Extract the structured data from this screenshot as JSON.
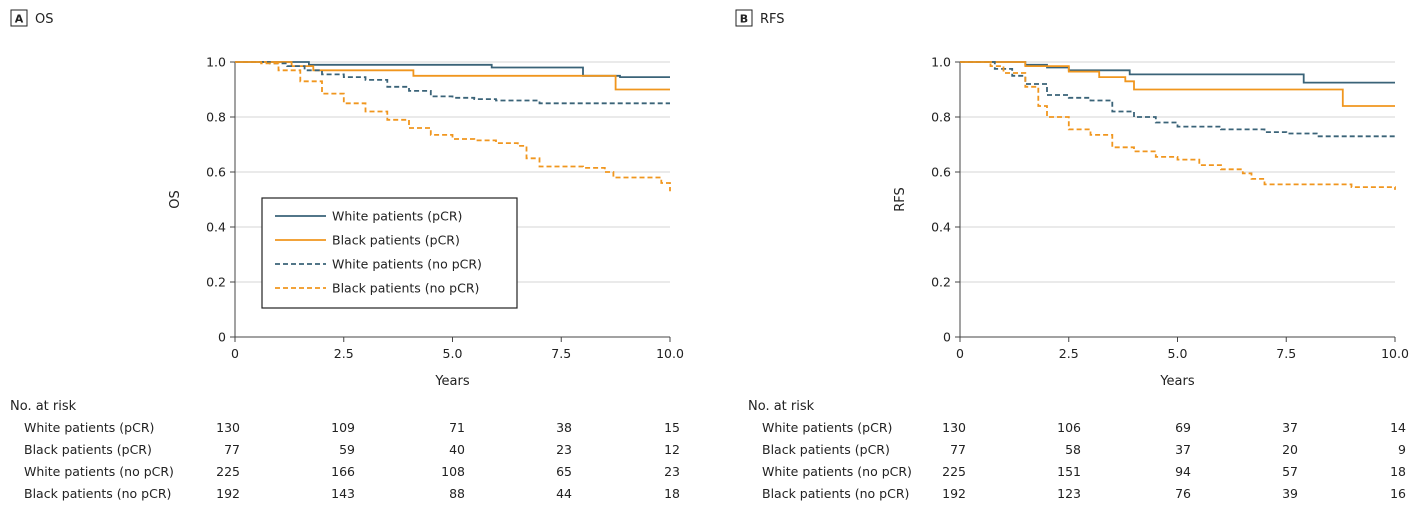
{
  "colors": {
    "white_series": "#3a6378",
    "black_series": "#f0961e",
    "grid": "#d6d6d6",
    "axis": "#444444",
    "text": "#222222"
  },
  "legend": {
    "items": [
      {
        "label": "White patients (pCR)",
        "color": "#3a6378",
        "dash": false
      },
      {
        "label": "Black patients (pCR)",
        "color": "#f0961e",
        "dash": false
      },
      {
        "label": "White patients (no pCR)",
        "color": "#3a6378",
        "dash": true
      },
      {
        "label": "Black patients (no pCR)",
        "color": "#f0961e",
        "dash": true
      }
    ],
    "placement": "lower-left, panel A"
  },
  "chart_data": [
    {
      "type": "line",
      "panel_letter": "A",
      "title": "OS",
      "xlabel": "Years",
      "ylabel": "OS",
      "xlim": [
        0,
        10
      ],
      "ylim": [
        0,
        1
      ],
      "x_ticks": [
        0,
        2.5,
        5,
        7.5,
        10
      ],
      "x_tick_labels": [
        "0",
        "2.5",
        "5.0",
        "7.5",
        "10.0"
      ],
      "y_ticks": [
        0,
        0.2,
        0.4,
        0.6,
        0.8,
        1.0
      ],
      "y_tick_labels": [
        "0",
        "0.2",
        "0.4",
        "0.6",
        "0.8",
        "1.0"
      ],
      "grid": "horizontal",
      "series": [
        {
          "name": "White patients (pCR)",
          "color": "#3a6378",
          "dash": false,
          "points": [
            [
              0,
              1.0
            ],
            [
              1.6,
              1.0
            ],
            [
              1.7,
              0.99
            ],
            [
              5.8,
              0.99
            ],
            [
              5.9,
              0.98
            ],
            [
              7.9,
              0.98
            ],
            [
              8.0,
              0.95
            ],
            [
              8.8,
              0.95
            ],
            [
              8.85,
              0.945
            ],
            [
              10,
              0.945
            ]
          ]
        },
        {
          "name": "Black patients (pCR)",
          "color": "#f0961e",
          "dash": false,
          "points": [
            [
              0,
              1.0
            ],
            [
              1.2,
              1.0
            ],
            [
              1.3,
              0.985
            ],
            [
              1.7,
              0.985
            ],
            [
              1.8,
              0.97
            ],
            [
              4.0,
              0.97
            ],
            [
              4.1,
              0.95
            ],
            [
              8.7,
              0.95
            ],
            [
              8.75,
              0.9
            ],
            [
              10,
              0.9
            ]
          ]
        },
        {
          "name": "White patients (no pCR)",
          "color": "#3a6378",
          "dash": true,
          "points": [
            [
              0,
              1.0
            ],
            [
              0.8,
              0.995
            ],
            [
              1.2,
              0.985
            ],
            [
              1.6,
              0.97
            ],
            [
              2.0,
              0.955
            ],
            [
              2.5,
              0.945
            ],
            [
              3.0,
              0.935
            ],
            [
              3.5,
              0.91
            ],
            [
              4.0,
              0.895
            ],
            [
              4.5,
              0.875
            ],
            [
              5.0,
              0.87
            ],
            [
              5.5,
              0.865
            ],
            [
              6.0,
              0.86
            ],
            [
              6.5,
              0.86
            ],
            [
              7.0,
              0.85
            ],
            [
              10,
              0.85
            ]
          ]
        },
        {
          "name": "Black patients (no pCR)",
          "color": "#f0961e",
          "dash": true,
          "points": [
            [
              0,
              1.0
            ],
            [
              0.6,
              0.995
            ],
            [
              1.0,
              0.97
            ],
            [
              1.5,
              0.93
            ],
            [
              2.0,
              0.885
            ],
            [
              2.5,
              0.85
            ],
            [
              3.0,
              0.82
            ],
            [
              3.5,
              0.79
            ],
            [
              4.0,
              0.76
            ],
            [
              4.5,
              0.735
            ],
            [
              5.0,
              0.72
            ],
            [
              5.5,
              0.715
            ],
            [
              6.0,
              0.705
            ],
            [
              6.5,
              0.695
            ],
            [
              6.7,
              0.65
            ],
            [
              7.0,
              0.62
            ],
            [
              8.0,
              0.615
            ],
            [
              8.5,
              0.6
            ],
            [
              8.7,
              0.58
            ],
            [
              9.5,
              0.58
            ],
            [
              9.8,
              0.56
            ],
            [
              10,
              0.53
            ]
          ]
        }
      ],
      "risk_table": {
        "header": "No. at risk",
        "rows": [
          {
            "label": "White patients (pCR)",
            "values": [
              "130",
              "109",
              "71",
              "38",
              "15"
            ]
          },
          {
            "label": "Black patients (pCR)",
            "values": [
              "77",
              "59",
              "40",
              "23",
              "12"
            ]
          },
          {
            "label": "White patients (no pCR)",
            "values": [
              "225",
              "166",
              "108",
              "65",
              "23"
            ]
          },
          {
            "label": "Black patients (no pCR)",
            "values": [
              "192",
              "143",
              "88",
              "44",
              "18"
            ]
          }
        ]
      }
    },
    {
      "type": "line",
      "panel_letter": "B",
      "title": "RFS",
      "xlabel": "Years",
      "ylabel": "RFS",
      "xlim": [
        0,
        10
      ],
      "ylim": [
        0,
        1
      ],
      "x_ticks": [
        0,
        2.5,
        5,
        7.5,
        10
      ],
      "x_tick_labels": [
        "0",
        "2.5",
        "5.0",
        "7.5",
        "10.0"
      ],
      "y_ticks": [
        0,
        0.2,
        0.4,
        0.6,
        0.8,
        1.0
      ],
      "y_tick_labels": [
        "0",
        "0.2",
        "0.4",
        "0.6",
        "0.8",
        "1.0"
      ],
      "grid": "horizontal",
      "series": [
        {
          "name": "White patients (pCR)",
          "color": "#3a6378",
          "dash": false,
          "points": [
            [
              0,
              1.0
            ],
            [
              1.4,
              1.0
            ],
            [
              1.5,
              0.99
            ],
            [
              1.9,
              0.99
            ],
            [
              2.0,
              0.98
            ],
            [
              2.5,
              0.97
            ],
            [
              3.8,
              0.97
            ],
            [
              3.9,
              0.955
            ],
            [
              7.8,
              0.955
            ],
            [
              7.9,
              0.925
            ],
            [
              10,
              0.925
            ]
          ]
        },
        {
          "name": "Black patients (pCR)",
          "color": "#f0961e",
          "dash": false,
          "points": [
            [
              0,
              1.0
            ],
            [
              1.4,
              1.0
            ],
            [
              1.5,
              0.985
            ],
            [
              2.5,
              0.965
            ],
            [
              3.2,
              0.945
            ],
            [
              3.8,
              0.93
            ],
            [
              4.0,
              0.9
            ],
            [
              8.7,
              0.9
            ],
            [
              8.8,
              0.84
            ],
            [
              10,
              0.84
            ]
          ]
        },
        {
          "name": "White patients (no pCR)",
          "color": "#3a6378",
          "dash": true,
          "points": [
            [
              0,
              1.0
            ],
            [
              0.8,
              0.975
            ],
            [
              1.2,
              0.95
            ],
            [
              1.5,
              0.92
            ],
            [
              2.0,
              0.88
            ],
            [
              2.5,
              0.87
            ],
            [
              3.0,
              0.86
            ],
            [
              3.5,
              0.82
            ],
            [
              4.0,
              0.8
            ],
            [
              4.5,
              0.78
            ],
            [
              5.0,
              0.765
            ],
            [
              6.0,
              0.755
            ],
            [
              7.0,
              0.745
            ],
            [
              7.5,
              0.74
            ],
            [
              8.2,
              0.73
            ],
            [
              10,
              0.73
            ]
          ]
        },
        {
          "name": "Black patients (no pCR)",
          "color": "#f0961e",
          "dash": true,
          "points": [
            [
              0,
              1.0
            ],
            [
              0.7,
              0.985
            ],
            [
              1.0,
              0.96
            ],
            [
              1.5,
              0.91
            ],
            [
              1.8,
              0.84
            ],
            [
              2.0,
              0.8
            ],
            [
              2.5,
              0.755
            ],
            [
              3.0,
              0.735
            ],
            [
              3.5,
              0.69
            ],
            [
              4.0,
              0.675
            ],
            [
              4.5,
              0.655
            ],
            [
              5.0,
              0.645
            ],
            [
              5.5,
              0.625
            ],
            [
              6.0,
              0.61
            ],
            [
              6.5,
              0.595
            ],
            [
              6.7,
              0.575
            ],
            [
              7.0,
              0.555
            ],
            [
              8.0,
              0.555
            ],
            [
              9.0,
              0.545
            ],
            [
              10,
              0.535
            ]
          ]
        }
      ],
      "risk_table": {
        "header": "No. at risk",
        "rows": [
          {
            "label": "White patients (pCR)",
            "values": [
              "130",
              "106",
              "69",
              "37",
              "14"
            ]
          },
          {
            "label": "Black patients (pCR)",
            "values": [
              "77",
              "58",
              "37",
              "20",
              "9"
            ]
          },
          {
            "label": "White patients (no pCR)",
            "values": [
              "225",
              "151",
              "94",
              "57",
              "18"
            ]
          },
          {
            "label": "Black patients (no pCR)",
            "values": [
              "192",
              "123",
              "76",
              "39",
              "16"
            ]
          }
        ]
      }
    }
  ]
}
